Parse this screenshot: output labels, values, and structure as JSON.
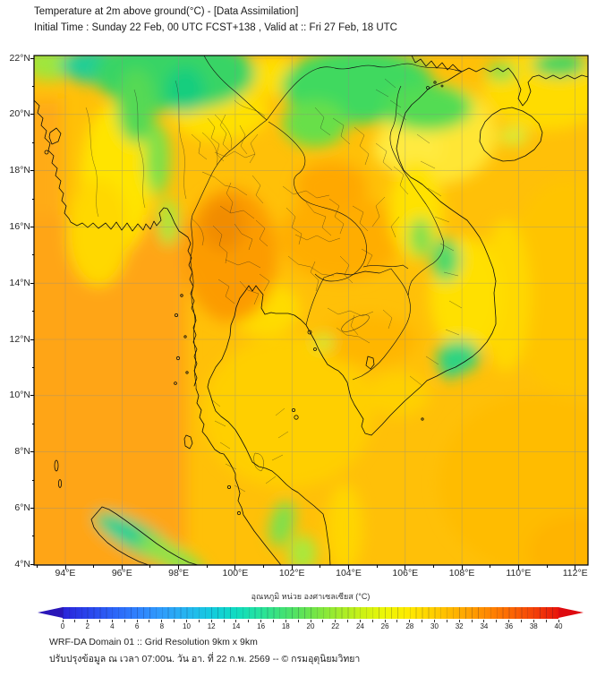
{
  "header": {
    "title": "Temperature at 2m above ground(°C) - [Data Assimilation]",
    "subtitle": "Initial Time : Sunday 22 Feb, 00 UTC FCST+138 , Valid at :: Fri 27 Feb, 18 UTC"
  },
  "map": {
    "lat_labels": [
      "22°N",
      "20°N",
      "18°N",
      "16°N",
      "14°N",
      "12°N",
      "10°N",
      "8°N",
      "6°N",
      "4°N"
    ],
    "lon_labels": [
      "94°E",
      "96°E",
      "98°E",
      "100°E",
      "102°E",
      "104°E",
      "106°E",
      "108°E",
      "110°E",
      "112°E"
    ]
  },
  "colorbar": {
    "label": "อุณหภูมิ หน่วย องศาเซลเซียส (°C)",
    "min": 0,
    "max": 40,
    "tick_labels": [
      "0",
      "2",
      "4",
      "6",
      "8",
      "10",
      "12",
      "14",
      "16",
      "18",
      "20",
      "22",
      "24",
      "26",
      "28",
      "30",
      "32",
      "34",
      "36",
      "38",
      "40"
    ],
    "palette": [
      "#2A23D8",
      "#2A44EC",
      "#2C63F7",
      "#2F81FD",
      "#2F9DFB",
      "#26B5F0",
      "#14CBDE",
      "#0FDCC0",
      "#27E39B",
      "#45E170",
      "#6CE44C",
      "#9CEB2E",
      "#C8F116",
      "#EDF607",
      "#FFE900",
      "#FFCD00",
      "#FFAE00",
      "#FF8D00",
      "#FC6A04",
      "#F44208",
      "#E8150B"
    ],
    "left_arrow_color": "#2A16B8",
    "right_arrow_color": "#DE0B10"
  },
  "footer": {
    "line1": "WRF-DA Domain 01 :: Grid Resolution 9km x 9km",
    "line2": "ปรับปรุงข้อมูล ณ เวลา 07:00น. วัน อา. ที่ 22 ก.พ. 2569 -- © กรมอุตุนิยมวิทยา"
  }
}
